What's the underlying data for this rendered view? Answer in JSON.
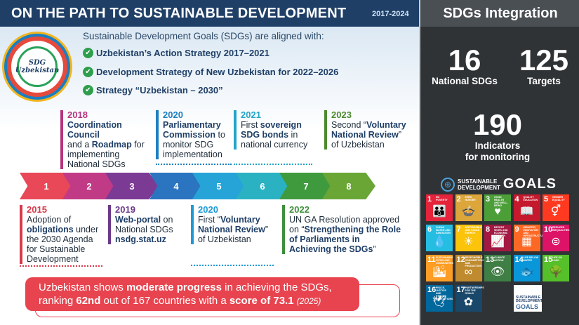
{
  "header": {
    "title": "ON THE PATH TO SUSTAINABLE DEVELOPMENT",
    "years": "2017-2024"
  },
  "logo": {
    "line1": "SDG",
    "line2": "Uzbekistan"
  },
  "intro": "Sustainable Development Goals (SDGs) are aligned with:",
  "strategies": [
    "Uzbekistan’s Action Strategy 2017–2021",
    "Development Strategy of New Uzbekistan for 2022–2026",
    "Strategy “Uzbekistan – 2030”"
  ],
  "events_top": [
    {
      "year": "2018",
      "bold1": "Coordination Council",
      "t1": "and a ",
      "bold2": "Roadmap",
      "t2": " for implementing National SDGs",
      "color": "#b5337f"
    },
    {
      "year": "2020",
      "bold1": "Parliamentary Commission",
      "t1": " to monitor SDG implementation",
      "color": "#1d7fbf"
    },
    {
      "year": "2021",
      "t0": "First ",
      "bold1": "sovereign SDG bonds",
      "t1": " in national currency",
      "color": "#22a6c8"
    },
    {
      "year": "2023",
      "t0": "Second “",
      "bold1": "Voluntary National Review",
      "t1": "” of Uzbekistan",
      "color": "#4c8a2f"
    }
  ],
  "events_bottom": [
    {
      "year": "2015",
      "t0": "Adoption of ",
      "bold1": "obligations",
      "t1": " under the 2030 Agenda for Sustainable Development",
      "color": "#d63a4a"
    },
    {
      "year": "2019",
      "bold1": "Web-portal",
      "t1": " on National SDGs ",
      "bold2": "nsdg.stat.uz",
      "color": "#6a3a8a"
    },
    {
      "year": "2020",
      "t0": "First “",
      "bold1": "Voluntary National Review",
      "t1": "” of Uzbekistan",
      "color": "#1d9ad6"
    },
    {
      "year": "2022",
      "t0": "UN GA Resolution approved on “",
      "bold1": "Strengthening the Role of Parliaments in Achieving the SDGs",
      "t1": "”",
      "color": "#3e8f3a"
    }
  ],
  "steps": [
    {
      "n": "1",
      "color": "#e84857"
    },
    {
      "n": "2",
      "color": "#c13a86"
    },
    {
      "n": "3",
      "color": "#7b3a94"
    },
    {
      "n": "4",
      "color": "#2a74c0"
    },
    {
      "n": "5",
      "color": "#26a4d8"
    },
    {
      "n": "6",
      "color": "#2ab2c2"
    },
    {
      "n": "7",
      "color": "#3f9a3e"
    },
    {
      "n": "8",
      "color": "#6aa636"
    }
  ],
  "banner": {
    "t0": "Uzbekistan shows ",
    "b0": "moderate progress",
    "t1": " in achieving the SDGs, ranking ",
    "b1": "62nd",
    "t2": " out of 167 countries with a ",
    "b2": "score of 73.1",
    "note": "(2025)"
  },
  "integration": {
    "title": "SDGs Integration",
    "national_sdgs": {
      "value": "16",
      "label": "National SDGs"
    },
    "targets": {
      "value": "125",
      "label": "Targets"
    },
    "indicators": {
      "value": "190",
      "label1": "Indicators",
      "label2": "for monitoring"
    }
  },
  "sdg_logo": {
    "line1": "SUSTAINABLE",
    "line2": "DEVELOPMENT",
    "goals": "GOALS"
  },
  "goals": [
    {
      "n": "1",
      "label": "NO POVERTY",
      "color": "#e5243b",
      "icon": "👪"
    },
    {
      "n": "2",
      "label": "ZERO HUNGER",
      "color": "#dda63a",
      "icon": "🍲"
    },
    {
      "n": "3",
      "label": "GOOD HEALTH AND WELL-BEING",
      "color": "#4c9f38",
      "icon": "♥"
    },
    {
      "n": "4",
      "label": "QUALITY EDUCATION",
      "color": "#c5192d",
      "icon": "📖"
    },
    {
      "n": "5",
      "label": "GENDER EQUALITY",
      "color": "#ff3a21",
      "icon": "⚥"
    },
    {
      "n": "6",
      "label": "CLEAN WATER AND SANITATION",
      "color": "#26bde2",
      "icon": "💧"
    },
    {
      "n": "7",
      "label": "AFFORDABLE AND CLEAN ENERGY",
      "color": "#fcc30b",
      "icon": "☀"
    },
    {
      "n": "8",
      "label": "DECENT WORK AND ECONOMIC GROWTH",
      "color": "#a21942",
      "icon": "📈"
    },
    {
      "n": "9",
      "label": "INDUSTRY, INNOVATION AND INFRASTRUCTURE",
      "color": "#fd6925",
      "icon": "▦"
    },
    {
      "n": "10",
      "label": "REDUCED INEQUALITIES",
      "color": "#dd1367",
      "icon": "⊜"
    },
    {
      "n": "11",
      "label": "SUSTAINABLE CITIES AND COMMUNITIES",
      "color": "#fd9d24",
      "icon": "🏙"
    },
    {
      "n": "12",
      "label": "RESPONSIBLE CONSUMPTION AND PRODUCTION",
      "color": "#bf8b2e",
      "icon": "∞"
    },
    {
      "n": "13",
      "label": "CLIMATE ACTION",
      "color": "#3f7e44",
      "icon": "👁"
    },
    {
      "n": "14",
      "label": "LIFE BELOW WATER",
      "color": "#0a97d9",
      "icon": "🐟"
    },
    {
      "n": "15",
      "label": "LIFE ON LAND",
      "color": "#56c02b",
      "icon": "🌳"
    },
    {
      "n": "16",
      "label": "PEACE, JUSTICE AND STRONG INSTITUTIONS",
      "color": "#00689d",
      "icon": "🕊"
    },
    {
      "n": "17",
      "label": "PARTNERSHIPS FOR THE GOALS",
      "color": "#19486a",
      "icon": "✿"
    }
  ]
}
